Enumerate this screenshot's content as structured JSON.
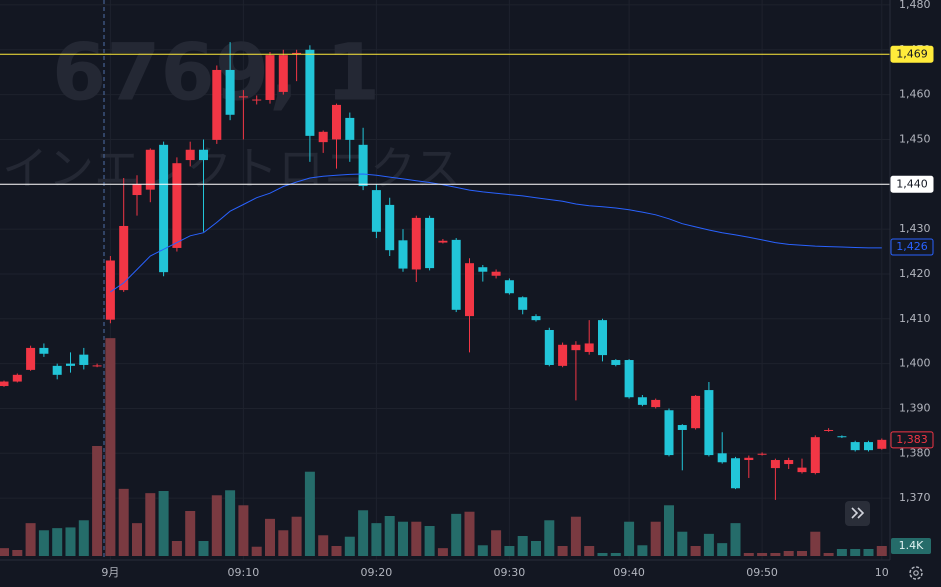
{
  "chart_data": {
    "type": "candlestick",
    "watermark": "6769, 1",
    "watermark_subtitle": "ザインエレクトロニクス",
    "up_color": "#f23645",
    "down_color": "#22c5d8",
    "volume_up_color": "#7a3a41",
    "volume_down_color": "#256c6a",
    "open": [
      1395,
      1396,
      1398.6,
      1403.5,
      1399.5,
      1400,
      1402,
      1399.5,
      1409.8,
      1416.4,
      1437.6,
      1438.8,
      1448.8,
      1425.8,
      1445.4,
      1447.7,
      1449.9,
      1465.5,
      1459.5,
      1458.8,
      1458.8,
      1460.6,
      1469,
      1470,
      1449.4,
      1450,
      1454.8,
      1448.8,
      1438.7,
      1435.4,
      1427.5,
      1421,
      1432.5,
      1427,
      1427.6,
      1410.6,
      1421.5,
      1419.6,
      1418.6,
      1414.8,
      1410.6,
      1407.5,
      1399.5,
      1403,
      1402.6,
      1409.7,
      1400.8,
      1400.8,
      1392.5,
      1390.3,
      1389.6,
      1386.3,
      1385.6,
      1394.1,
      1380,
      1378.9,
      1378.5,
      1379.8,
      1376.7,
      1377.6,
      1375.8,
      1375.6,
      1385,
      1383.8,
      1382.5,
      1382.5,
      1381
    ],
    "high": [
      1396.2,
      1397.8,
      1404,
      1404.5,
      1400,
      1402.5,
      1403.5,
      1400,
      1424,
      1441.4,
      1442,
      1448,
      1449.5,
      1446,
      1449.5,
      1450,
      1466.5,
      1471.7,
      1461,
      1459.8,
      1469.5,
      1470,
      1470,
      1471,
      1452,
      1458,
      1456,
      1452.6,
      1440,
      1437,
      1430,
      1433,
      1433,
      1427.8,
      1428,
      1423.5,
      1422,
      1421,
      1419,
      1415,
      1411,
      1408,
      1404.7,
      1405,
      1409.7,
      1410,
      1401,
      1401,
      1393,
      1392.2,
      1390,
      1386.5,
      1393,
      1395.9,
      1384.7,
      1379.2,
      1379.5,
      1380.2,
      1378.8,
      1379,
      1378.8,
      1384,
      1385.6,
      1384,
      1382.8,
      1382.8,
      1383.3
    ],
    "low": [
      1394.8,
      1395.8,
      1398.4,
      1401.5,
      1396.5,
      1398,
      1398.7,
      1399.2,
      1409,
      1416,
      1433,
      1436,
      1419.5,
      1425,
      1444,
      1429.4,
      1449,
      1454.3,
      1450,
      1457.8,
      1458,
      1460,
      1463,
      1445,
      1447,
      1443.5,
      1445,
      1438.7,
      1428,
      1424,
      1420.5,
      1418.2,
      1420.8,
      1426.8,
      1411.5,
      1402.5,
      1418.3,
      1419,
      1415.4,
      1411,
      1409.4,
      1399.4,
      1399.2,
      1391.8,
      1402,
      1400.5,
      1399.4,
      1392.2,
      1390.5,
      1390,
      1379.3,
      1376.2,
      1385.3,
      1379.3,
      1377.7,
      1372,
      1374.5,
      1379.5,
      1369.6,
      1376.5,
      1375.5,
      1375.3,
      1384.8,
      1383.4,
      1380.4,
      1380.4,
      1380.8
    ],
    "close": [
      1396,
      1397.5,
      1403.5,
      1402.2,
      1397.5,
      1399.5,
      1399.7,
      1399.6,
      1423,
      1430.7,
      1440,
      1447.7,
      1420.4,
      1444.7,
      1447.7,
      1445.4,
      1465.5,
      1455.5,
      1459.6,
      1458.9,
      1468.8,
      1468.8,
      1469.3,
      1450.8,
      1451.7,
      1457.7,
      1449.9,
      1439.6,
      1429.4,
      1425.3,
      1421.2,
      1432.5,
      1421.3,
      1427.4,
      1412,
      1422.4,
      1420.5,
      1420.5,
      1415.7,
      1412,
      1409.7,
      1399.7,
      1404.2,
      1404.2,
      1404.5,
      1401.9,
      1399.7,
      1392.5,
      1390.8,
      1391.9,
      1379.6,
      1385.2,
      1392.8,
      1379.6,
      1378,
      1372.2,
      1379,
      1379.9,
      1378.5,
      1378.5,
      1376.8,
      1383.6,
      1385.2,
      1383.6,
      1380.7,
      1380.7,
      1383
    ],
    "volume": [
      1100,
      840,
      4600,
      3600,
      3900,
      4000,
      5000,
      15400,
      30500,
      9400,
      4600,
      8800,
      9100,
      2100,
      6300,
      2100,
      8500,
      9200,
      7100,
      1300,
      5200,
      3600,
      5500,
      11800,
      2900,
      1400,
      2700,
      6400,
      4600,
      5600,
      4800,
      4800,
      4200,
      1100,
      5900,
      6200,
      1500,
      3600,
      1400,
      2800,
      2100,
      5000,
      1400,
      5500,
      1400,
      420,
      420,
      4800,
      1500,
      4800,
      7100,
      3400,
      1400,
      3100,
      1800,
      4600,
      420,
      420,
      420,
      700,
      700,
      3400,
      420,
      980,
      980,
      980,
      1400
    ],
    "volume_value_labels": [
      null,
      null,
      null,
      null,
      null,
      null,
      null,
      null,
      null,
      null,
      null,
      null,
      null,
      null,
      null,
      null,
      null,
      null,
      null,
      null,
      null,
      null,
      null,
      null,
      null,
      null,
      null,
      null,
      null,
      null,
      null,
      null,
      null,
      null,
      null,
      null,
      null,
      null,
      null,
      null,
      null,
      null,
      null,
      null,
      null,
      null,
      null,
      null,
      null,
      null,
      null,
      null,
      null,
      null,
      null,
      null,
      null,
      null,
      null,
      null,
      null,
      null,
      null,
      null,
      null,
      null,
      "1.4K"
    ],
    "ma": {
      "color": "#2962ff",
      "values": [
        null,
        null,
        null,
        null,
        null,
        null,
        null,
        null,
        1416,
        1418,
        1421,
        1424,
        1425.5,
        1427,
        1428.5,
        1429.2,
        1431.5,
        1434,
        1435.5,
        1437,
        1438,
        1439.5,
        1440.5,
        1441.4,
        1441.8,
        1442,
        1442.2,
        1442.3,
        1442,
        1441.6,
        1441.2,
        1440.8,
        1440.4,
        1439.9,
        1439.3,
        1438.7,
        1438.3,
        1438,
        1437.7,
        1437.4,
        1437,
        1436.6,
        1436.2,
        1435.6,
        1435.2,
        1435,
        1434.7,
        1434.3,
        1433.8,
        1433.2,
        1432.3,
        1431.2,
        1430.5,
        1429.8,
        1429.2,
        1428.7,
        1428.2,
        1427.6,
        1427,
        1426.6,
        1426.4,
        1426.2,
        1426.1,
        1426,
        1425.9,
        1425.8,
        1425.8
      ]
    },
    "price_lines": [
      {
        "value": 1469,
        "label": "1,469",
        "color": "#ffeb3b",
        "line": true,
        "filled": true
      },
      {
        "value": 1440,
        "label": "1,440",
        "color": "#ffffff",
        "line": true,
        "filled": true
      },
      {
        "value": 1426,
        "label": "1,426",
        "color": "#2962ff",
        "line": false,
        "filled": false
      },
      {
        "value": 1383,
        "label": "1,383",
        "color": "#f23645",
        "line": false,
        "filled": false
      }
    ],
    "ylim": [
      1356.2,
      1481.1
    ],
    "yticks": [
      {
        "value": 1370,
        "label": "1,370"
      },
      {
        "value": 1380,
        "label": "1,380"
      },
      {
        "value": 1390,
        "label": "1,390"
      },
      {
        "value": 1400,
        "label": "1,400"
      },
      {
        "value": 1410,
        "label": "1,410"
      },
      {
        "value": 1420,
        "label": "1,420"
      },
      {
        "value": 1430,
        "label": "1,430"
      },
      {
        "value": 1440,
        "label": "1,440"
      },
      {
        "value": 1450,
        "label": "1,450"
      },
      {
        "value": 1460,
        "label": "1,460"
      },
      {
        "value": 1470,
        "label": "1,470"
      },
      {
        "value": 1480,
        "label": "1,480"
      }
    ],
    "vlim": [
      0,
      77840
    ],
    "xticks": [
      {
        "value": 8,
        "label": "9月"
      },
      {
        "value": 18,
        "label": "09:10"
      },
      {
        "value": 28,
        "label": "09:20"
      },
      {
        "value": 38,
        "label": "09:30"
      },
      {
        "value": 47,
        "label": "09:40"
      },
      {
        "value": 57,
        "label": "09:50"
      },
      {
        "value": 66,
        "label": "10"
      }
    ],
    "grid": true
  }
}
